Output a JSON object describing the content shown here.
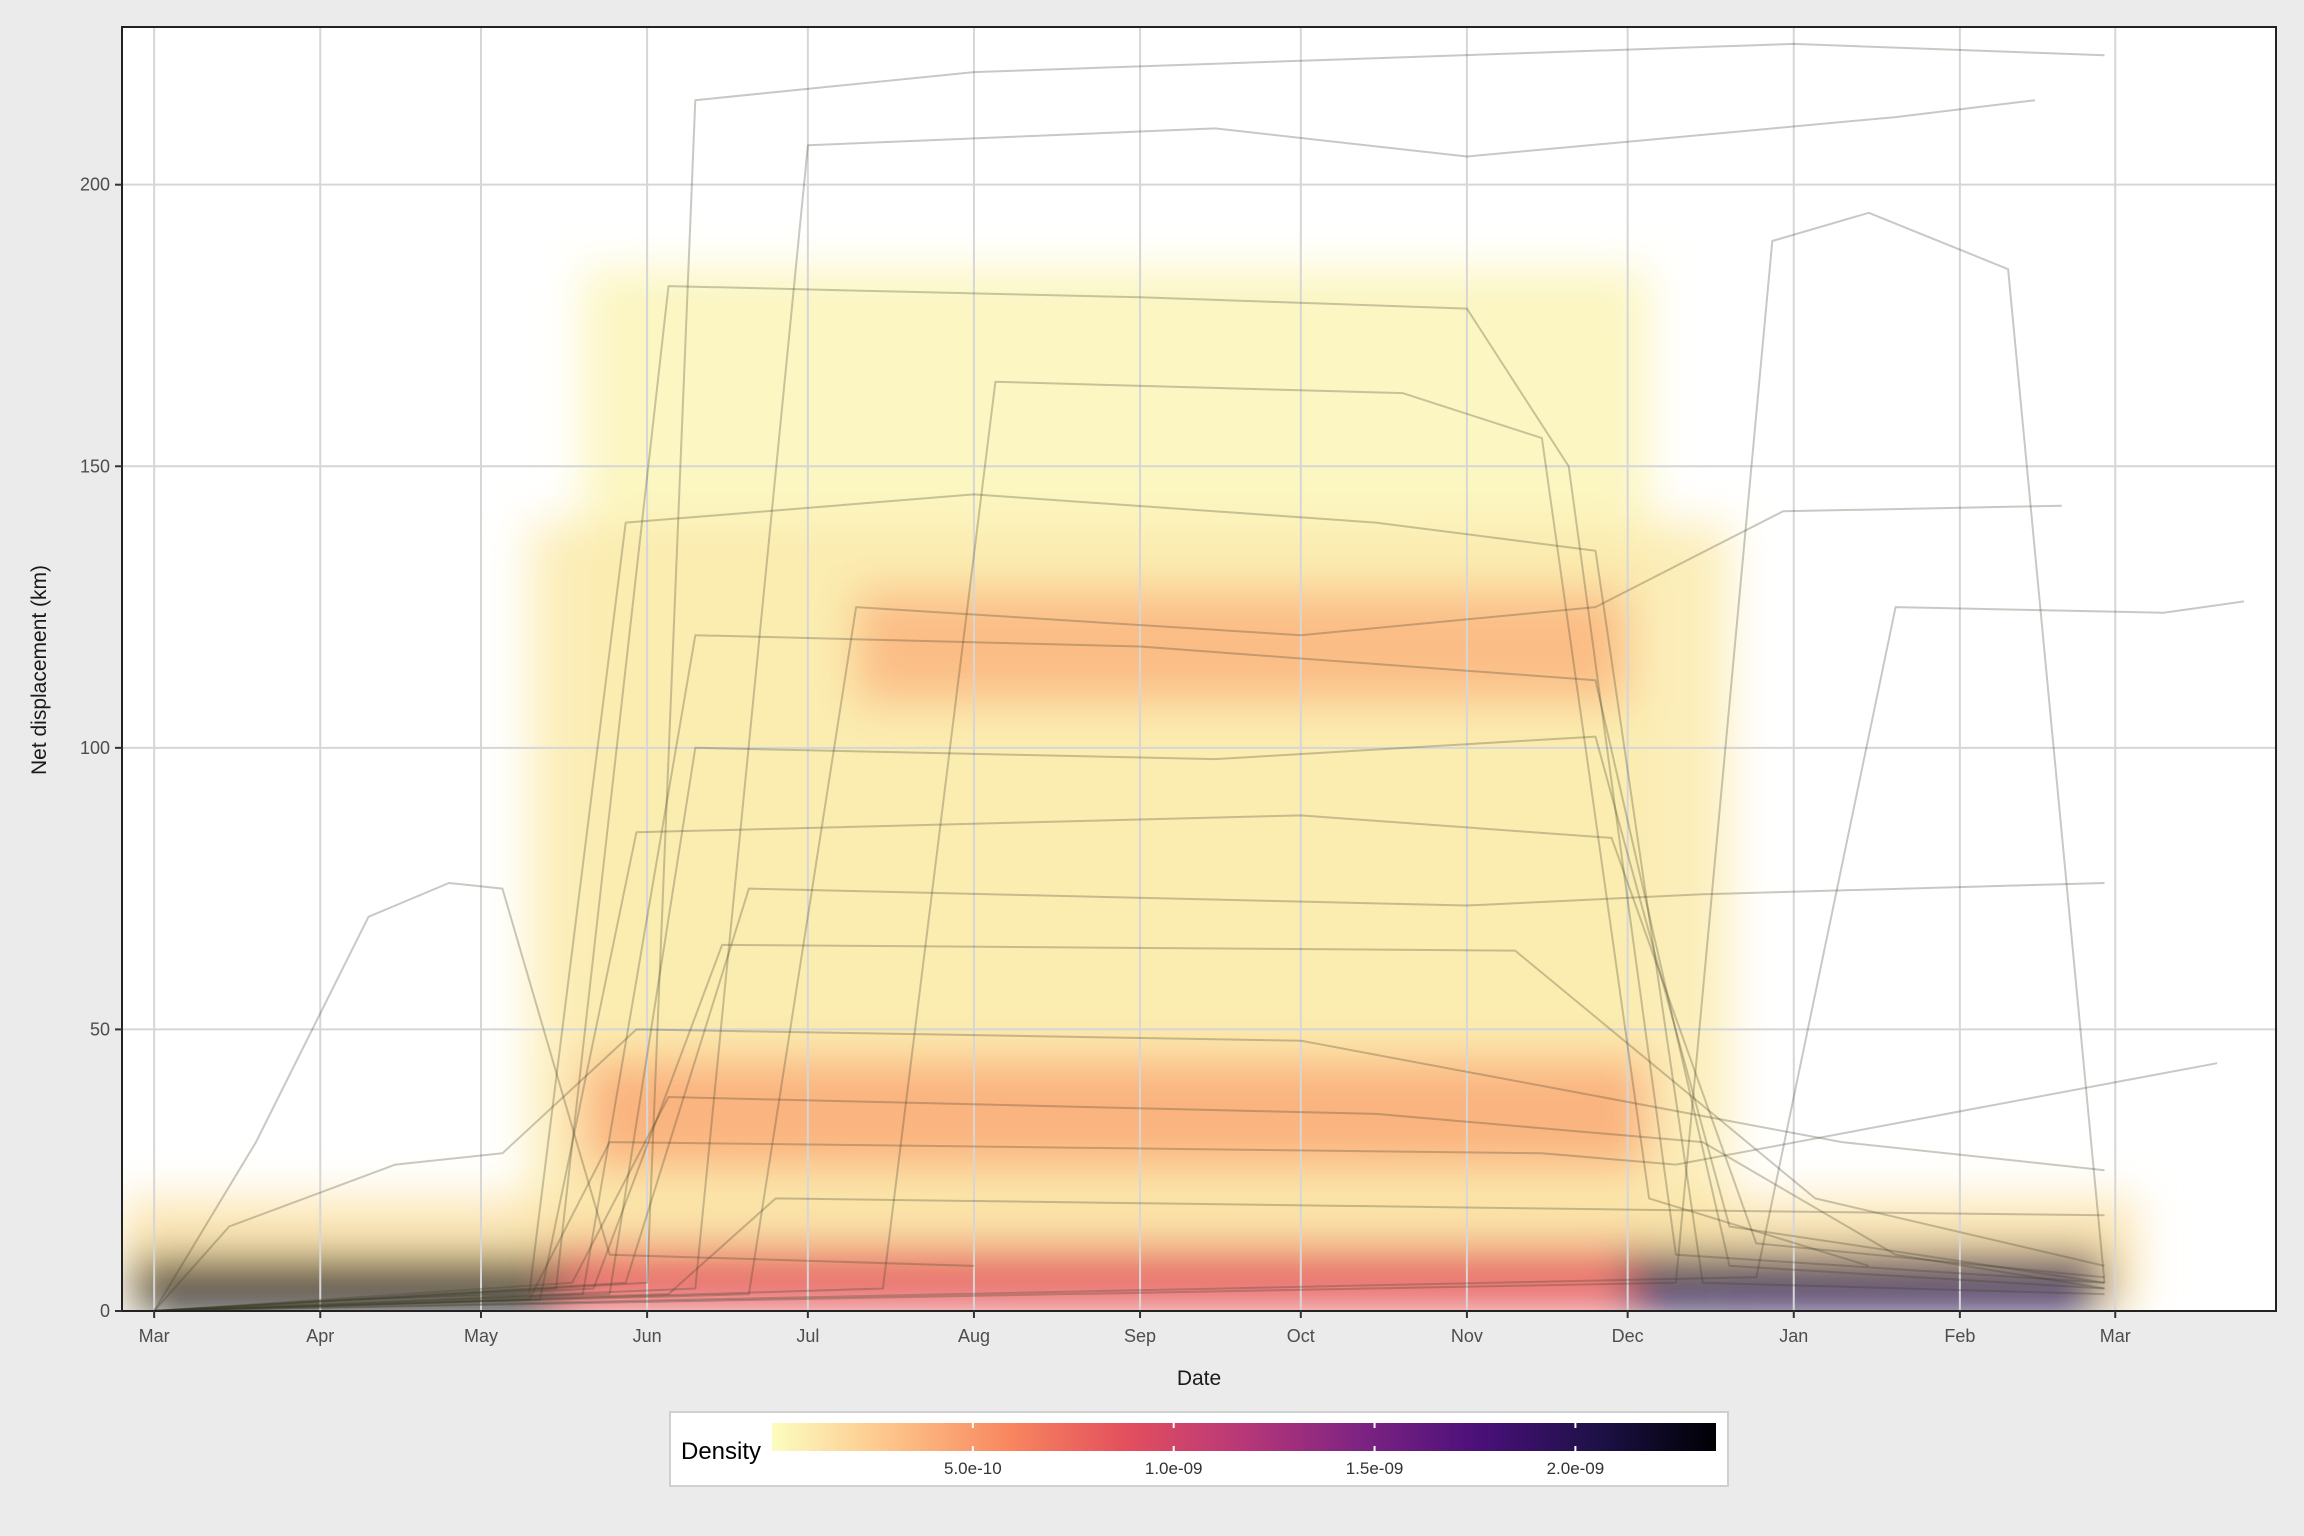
{
  "chart_data": {
    "type": "line",
    "subtype": "trajectory lines over 2D density raster",
    "xlabel": "Date",
    "ylabel": "Net displacement (km)",
    "x_range": [
      "2023-02-23",
      "2024-03-31"
    ],
    "ylim": [
      0,
      228
    ],
    "x_ticks": [
      {
        "label": "Mar",
        "date": "2023-03-01"
      },
      {
        "label": "Apr",
        "date": "2023-04-01"
      },
      {
        "label": "May",
        "date": "2023-05-01"
      },
      {
        "label": "Jun",
        "date": "2023-06-01"
      },
      {
        "label": "Jul",
        "date": "2023-07-01"
      },
      {
        "label": "Aug",
        "date": "2023-08-01"
      },
      {
        "label": "Sep",
        "date": "2023-09-01"
      },
      {
        "label": "Oct",
        "date": "2023-10-01"
      },
      {
        "label": "Nov",
        "date": "2023-11-01"
      },
      {
        "label": "Dec",
        "date": "2023-12-01"
      },
      {
        "label": "Jan",
        "date": "2024-01-01"
      },
      {
        "label": "Feb",
        "date": "2024-02-01"
      },
      {
        "label": "Mar",
        "date": "2024-03-01"
      }
    ],
    "y_ticks": [
      0,
      50,
      100,
      150,
      200
    ],
    "grid": true,
    "legend": {
      "title": "Density",
      "position": "bottom",
      "min": 0,
      "max": 2.35e-09,
      "ticks": [
        {
          "label": "5.0e-10",
          "value": 5e-10
        },
        {
          "label": "1.0e-09",
          "value": 1e-09
        },
        {
          "label": "1.5e-09",
          "value": 1.5e-09
        },
        {
          "label": "2.0e-09",
          "value": 2e-09
        }
      ],
      "palette": [
        "#fcfdbf",
        "#fdc48a",
        "#f8875f",
        "#e34f5d",
        "#b73779",
        "#7c2382",
        "#4a1079",
        "#1d1147",
        "#000004"
      ]
    },
    "density_hotspots": [
      {
        "date_start": "2023-02-25",
        "date_end": "2023-05-20",
        "y": 3,
        "density": 2.3e-09
      },
      {
        "date_start": "2023-05-15",
        "date_end": "2023-12-05",
        "y": 5,
        "density": 8.5e-10
      },
      {
        "date_start": "2023-05-20",
        "date_end": "2023-12-05",
        "y": 35,
        "density": 4e-10
      },
      {
        "date_start": "2023-07-10",
        "date_end": "2023-12-01",
        "y": 118,
        "density": 3.5e-10
      },
      {
        "date_start": "2023-12-01",
        "date_end": "2024-02-28",
        "y": 4,
        "density": 2e-09
      }
    ],
    "series": [
      {
        "values": [
          {
            "date": "2023-03-01",
            "y": 0
          },
          {
            "date": "2023-04-05",
            "y": 2
          },
          {
            "date": "2023-05-10",
            "y": 3
          },
          {
            "date": "2023-05-28",
            "y": 140
          },
          {
            "date": "2023-08-01",
            "y": 145
          },
          {
            "date": "2023-10-15",
            "y": 140
          },
          {
            "date": "2023-11-25",
            "y": 135
          },
          {
            "date": "2023-12-15",
            "y": 5
          },
          {
            "date": "2024-02-28",
            "y": 3
          }
        ]
      },
      {
        "values": [
          {
            "date": "2023-03-01",
            "y": 0
          },
          {
            "date": "2023-05-15",
            "y": 4
          },
          {
            "date": "2023-06-05",
            "y": 182
          },
          {
            "date": "2023-09-01",
            "y": 180
          },
          {
            "date": "2023-11-01",
            "y": 178
          },
          {
            "date": "2023-11-20",
            "y": 150
          },
          {
            "date": "2023-12-10",
            "y": 10
          },
          {
            "date": "2024-02-28",
            "y": 5
          }
        ]
      },
      {
        "values": [
          {
            "date": "2023-03-01",
            "y": 0
          },
          {
            "date": "2023-05-20",
            "y": 3
          },
          {
            "date": "2023-06-10",
            "y": 120
          },
          {
            "date": "2023-09-01",
            "y": 118
          },
          {
            "date": "2023-11-25",
            "y": 112
          },
          {
            "date": "2023-12-20",
            "y": 8
          },
          {
            "date": "2024-02-28",
            "y": 4
          }
        ]
      },
      {
        "values": [
          {
            "date": "2023-03-01",
            "y": 0
          },
          {
            "date": "2023-05-12",
            "y": 2
          },
          {
            "date": "2023-05-30",
            "y": 85
          },
          {
            "date": "2023-10-01",
            "y": 88
          },
          {
            "date": "2023-11-28",
            "y": 84
          },
          {
            "date": "2023-12-25",
            "y": 12
          },
          {
            "date": "2024-02-28",
            "y": 6
          }
        ]
      },
      {
        "values": [
          {
            "date": "2023-03-01",
            "y": 0
          },
          {
            "date": "2023-05-18",
            "y": 5
          },
          {
            "date": "2023-06-05",
            "y": 38
          },
          {
            "date": "2023-10-15",
            "y": 35
          },
          {
            "date": "2023-12-15",
            "y": 30
          },
          {
            "date": "2024-01-20",
            "y": 10
          },
          {
            "date": "2024-02-28",
            "y": 4
          }
        ]
      },
      {
        "values": [
          {
            "date": "2023-03-01",
            "y": 0
          },
          {
            "date": "2023-05-22",
            "y": 4
          },
          {
            "date": "2023-06-15",
            "y": 65
          },
          {
            "date": "2023-11-10",
            "y": 64
          },
          {
            "date": "2024-01-05",
            "y": 20
          },
          {
            "date": "2024-02-28",
            "y": 8
          }
        ]
      },
      {
        "values": [
          {
            "date": "2023-03-01",
            "y": 0
          },
          {
            "date": "2023-05-25",
            "y": 3
          },
          {
            "date": "2023-06-10",
            "y": 100
          },
          {
            "date": "2023-09-15",
            "y": 98
          },
          {
            "date": "2023-11-25",
            "y": 102
          },
          {
            "date": "2023-12-20",
            "y": 15
          },
          {
            "date": "2024-02-28",
            "y": 5
          }
        ]
      },
      {
        "values": [
          {
            "date": "2023-03-01",
            "y": 0
          },
          {
            "date": "2023-06-01",
            "y": 5
          },
          {
            "date": "2023-06-10",
            "y": 215
          },
          {
            "date": "2023-08-01",
            "y": 220
          },
          {
            "date": "2023-10-01",
            "y": 222
          },
          {
            "date": "2024-01-01",
            "y": 225
          },
          {
            "date": "2024-02-28",
            "y": 223
          }
        ]
      },
      {
        "values": [
          {
            "date": "2023-03-01",
            "y": 0
          },
          {
            "date": "2023-06-10",
            "y": 4
          },
          {
            "date": "2023-07-01",
            "y": 207
          },
          {
            "date": "2023-09-15",
            "y": 210
          },
          {
            "date": "2023-11-01",
            "y": 205
          },
          {
            "date": "2024-01-20",
            "y": 212
          },
          {
            "date": "2024-02-15",
            "y": 215
          }
        ]
      },
      {
        "values": [
          {
            "date": "2023-03-01",
            "y": 0
          },
          {
            "date": "2023-03-20",
            "y": 30
          },
          {
            "date": "2023-04-10",
            "y": 70
          },
          {
            "date": "2023-04-25",
            "y": 76
          },
          {
            "date": "2023-05-05",
            "y": 75
          },
          {
            "date": "2023-05-25",
            "y": 10
          },
          {
            "date": "2023-08-01",
            "y": 8
          }
        ]
      },
      {
        "values": [
          {
            "date": "2023-03-01",
            "y": 0
          },
          {
            "date": "2023-03-15",
            "y": 15
          },
          {
            "date": "2023-04-15",
            "y": 26
          },
          {
            "date": "2023-05-05",
            "y": 28
          },
          {
            "date": "2023-05-30",
            "y": 50
          },
          {
            "date": "2023-10-01",
            "y": 48
          },
          {
            "date": "2024-01-10",
            "y": 30
          },
          {
            "date": "2024-02-28",
            "y": 25
          }
        ]
      },
      {
        "values": [
          {
            "date": "2023-03-01",
            "y": 0
          },
          {
            "date": "2023-06-20",
            "y": 3
          },
          {
            "date": "2023-07-10",
            "y": 125
          },
          {
            "date": "2023-10-01",
            "y": 120
          },
          {
            "date": "2023-11-25",
            "y": 125
          },
          {
            "date": "2023-12-30",
            "y": 142
          },
          {
            "date": "2024-02-20",
            "y": 143
          }
        ]
      },
      {
        "values": [
          {
            "date": "2023-03-01",
            "y": 0
          },
          {
            "date": "2023-07-15",
            "y": 4
          },
          {
            "date": "2023-08-05",
            "y": 165
          },
          {
            "date": "2023-10-20",
            "y": 163
          },
          {
            "date": "2023-11-15",
            "y": 155
          },
          {
            "date": "2023-12-05",
            "y": 20
          },
          {
            "date": "2024-01-15",
            "y": 8
          }
        ]
      },
      {
        "values": [
          {
            "date": "2023-03-01",
            "y": 0
          },
          {
            "date": "2023-12-10",
            "y": 5
          },
          {
            "date": "2023-12-28",
            "y": 190
          },
          {
            "date": "2024-01-15",
            "y": 195
          },
          {
            "date": "2024-02-10",
            "y": 185
          },
          {
            "date": "2024-02-28",
            "y": 5
          }
        ]
      },
      {
        "values": [
          {
            "date": "2023-03-01",
            "y": 0
          },
          {
            "date": "2023-12-25",
            "y": 6
          },
          {
            "date": "2024-01-20",
            "y": 125
          },
          {
            "date": "2024-03-10",
            "y": 124
          },
          {
            "date": "2024-03-25",
            "y": 126
          }
        ]
      },
      {
        "values": [
          {
            "date": "2023-03-01",
            "y": 0
          },
          {
            "date": "2023-05-28",
            "y": 5
          },
          {
            "date": "2023-06-20",
            "y": 75
          },
          {
            "date": "2023-11-01",
            "y": 72
          },
          {
            "date": "2023-12-15",
            "y": 74
          },
          {
            "date": "2024-02-28",
            "y": 76
          }
        ]
      },
      {
        "values": [
          {
            "date": "2023-03-01",
            "y": 0
          },
          {
            "date": "2023-06-05",
            "y": 3
          },
          {
            "date": "2023-06-25",
            "y": 20
          },
          {
            "date": "2023-12-01",
            "y": 18
          },
          {
            "date": "2024-02-28",
            "y": 17
          }
        ]
      },
      {
        "values": [
          {
            "date": "2023-03-01",
            "y": 0
          },
          {
            "date": "2023-05-10",
            "y": 2
          },
          {
            "date": "2023-05-25",
            "y": 30
          },
          {
            "date": "2023-11-15",
            "y": 28
          },
          {
            "date": "2023-12-10",
            "y": 26
          },
          {
            "date": "2024-03-20",
            "y": 44
          }
        ]
      }
    ]
  }
}
